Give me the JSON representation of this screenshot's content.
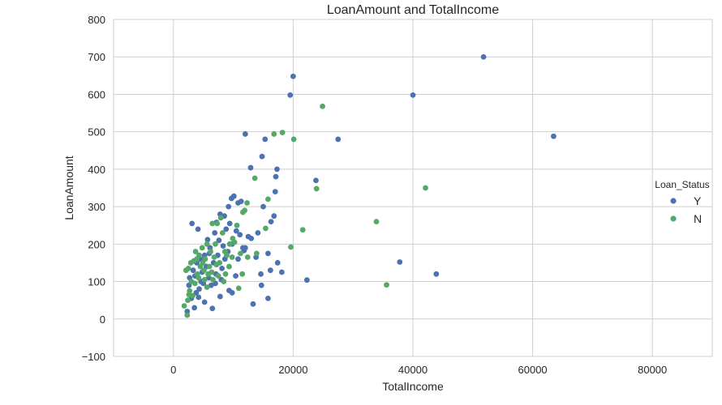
{
  "chart_data": {
    "type": "scatter",
    "title": "LoanAmount and TotalIncome",
    "xlabel": "TotalIncome",
    "ylabel": "LoanAmount",
    "xlim": [
      -10000,
      90000
    ],
    "ylim": [
      -100,
      800
    ],
    "xticks": [
      0,
      20000,
      40000,
      60000,
      80000
    ],
    "yticks": [
      -100,
      0,
      100,
      200,
      300,
      400,
      500,
      600,
      700,
      800
    ],
    "grid": true,
    "legend": {
      "title": "Loan_Status",
      "position": "right"
    },
    "colors": {
      "Y": "#4c72b0",
      "N": "#55a868"
    },
    "series": [
      {
        "name": "Y",
        "points": [
          [
            51800,
            700
          ],
          [
            63500,
            488
          ],
          [
            40000,
            598
          ],
          [
            20000,
            648
          ],
          [
            19500,
            598
          ],
          [
            27500,
            480
          ],
          [
            12000,
            494
          ],
          [
            15300,
            480
          ],
          [
            14800,
            434
          ],
          [
            12900,
            404
          ],
          [
            17300,
            400
          ],
          [
            17100,
            380
          ],
          [
            23800,
            370
          ],
          [
            17400,
            150
          ],
          [
            37800,
            152
          ],
          [
            43900,
            120
          ],
          [
            22300,
            104
          ],
          [
            14700,
            90
          ],
          [
            15800,
            55
          ],
          [
            13300,
            40
          ],
          [
            17000,
            340
          ],
          [
            16300,
            260
          ],
          [
            16800,
            275
          ],
          [
            15000,
            300
          ],
          [
            14100,
            230
          ],
          [
            11300,
            314
          ],
          [
            10800,
            310
          ],
          [
            10100,
            328
          ],
          [
            9700,
            322
          ],
          [
            9200,
            300
          ],
          [
            8500,
            275
          ],
          [
            7800,
            280
          ],
          [
            7200,
            258
          ],
          [
            11100,
            225
          ],
          [
            11800,
            183
          ],
          [
            11600,
            190
          ],
          [
            10800,
            160
          ],
          [
            10400,
            115
          ],
          [
            9800,
            70
          ],
          [
            9300,
            76
          ],
          [
            12500,
            220
          ],
          [
            13800,
            165
          ],
          [
            15800,
            175
          ],
          [
            16200,
            130
          ],
          [
            18100,
            125
          ],
          [
            14600,
            120
          ],
          [
            3100,
            255
          ],
          [
            3500,
            30
          ],
          [
            3000,
            55
          ],
          [
            2300,
            20
          ],
          [
            4200,
            58
          ],
          [
            5200,
            45
          ],
          [
            6500,
            28
          ],
          [
            7800,
            60
          ],
          [
            4100,
            240
          ],
          [
            5700,
            212
          ],
          [
            6100,
            190
          ],
          [
            5200,
            170
          ],
          [
            3900,
            150
          ],
          [
            3300,
            130
          ],
          [
            2700,
            110
          ],
          [
            4600,
            100
          ],
          [
            6300,
            90
          ],
          [
            7100,
            120
          ],
          [
            8100,
            135
          ],
          [
            8600,
            160
          ],
          [
            9100,
            180
          ],
          [
            9800,
            200
          ],
          [
            7600,
            210
          ],
          [
            6900,
            230
          ],
          [
            5500,
            140
          ],
          [
            4800,
            125
          ],
          [
            4300,
            80
          ],
          [
            3800,
            70
          ],
          [
            2600,
            90
          ],
          [
            6700,
            150
          ],
          [
            7400,
            170
          ],
          [
            8300,
            195
          ],
          [
            5900,
            110
          ],
          [
            4500,
            160
          ],
          [
            3600,
            115
          ],
          [
            5000,
            95
          ],
          [
            6000,
            175
          ],
          [
            7000,
            95
          ],
          [
            8800,
            240
          ],
          [
            9400,
            255
          ],
          [
            10500,
            235
          ],
          [
            12000,
            190
          ],
          [
            13000,
            215
          ],
          [
            8000,
            105
          ]
        ]
      },
      {
        "name": "N",
        "points": [
          [
            24900,
            568
          ],
          [
            18200,
            498
          ],
          [
            16800,
            494
          ],
          [
            20100,
            480
          ],
          [
            23900,
            348
          ],
          [
            42100,
            350
          ],
          [
            33900,
            260
          ],
          [
            35600,
            91
          ],
          [
            21600,
            238
          ],
          [
            19600,
            192
          ],
          [
            15400,
            242
          ],
          [
            15800,
            320
          ],
          [
            13600,
            376
          ],
          [
            12300,
            310
          ],
          [
            11900,
            290
          ],
          [
            11600,
            285
          ],
          [
            10600,
            250
          ],
          [
            9900,
            215
          ],
          [
            9400,
            200
          ],
          [
            8600,
            180
          ],
          [
            7900,
            270
          ],
          [
            7300,
            255
          ],
          [
            6500,
            255
          ],
          [
            8200,
            230
          ],
          [
            10200,
            205
          ],
          [
            11200,
            175
          ],
          [
            12400,
            165
          ],
          [
            13900,
            175
          ],
          [
            11500,
            120
          ],
          [
            10900,
            82
          ],
          [
            9300,
            140
          ],
          [
            8700,
            120
          ],
          [
            7200,
            145
          ],
          [
            6800,
            165
          ],
          [
            6200,
            180
          ],
          [
            5600,
            200
          ],
          [
            4800,
            190
          ],
          [
            4300,
            170
          ],
          [
            3900,
            160
          ],
          [
            3400,
            155
          ],
          [
            2900,
            150
          ],
          [
            2500,
            135
          ],
          [
            2100,
            130
          ],
          [
            1800,
            35
          ],
          [
            2300,
            10
          ],
          [
            3600,
            95
          ],
          [
            4200,
            110
          ],
          [
            5100,
            130
          ],
          [
            5800,
            120
          ],
          [
            6600,
            105
          ],
          [
            7500,
            115
          ],
          [
            8400,
            100
          ],
          [
            2700,
            75
          ],
          [
            3200,
            62
          ],
          [
            4500,
            140
          ],
          [
            5300,
            160
          ],
          [
            6000,
            140
          ],
          [
            7000,
            200
          ],
          [
            8900,
            170
          ],
          [
            9800,
            165
          ],
          [
            3000,
            100
          ],
          [
            2600,
            65
          ],
          [
            4000,
            120
          ],
          [
            4900,
            150
          ],
          [
            5600,
            85
          ],
          [
            6400,
            125
          ],
          [
            7700,
            150
          ],
          [
            3700,
            180
          ],
          [
            2400,
            50
          ],
          [
            5200,
            105
          ]
        ]
      }
    ]
  }
}
